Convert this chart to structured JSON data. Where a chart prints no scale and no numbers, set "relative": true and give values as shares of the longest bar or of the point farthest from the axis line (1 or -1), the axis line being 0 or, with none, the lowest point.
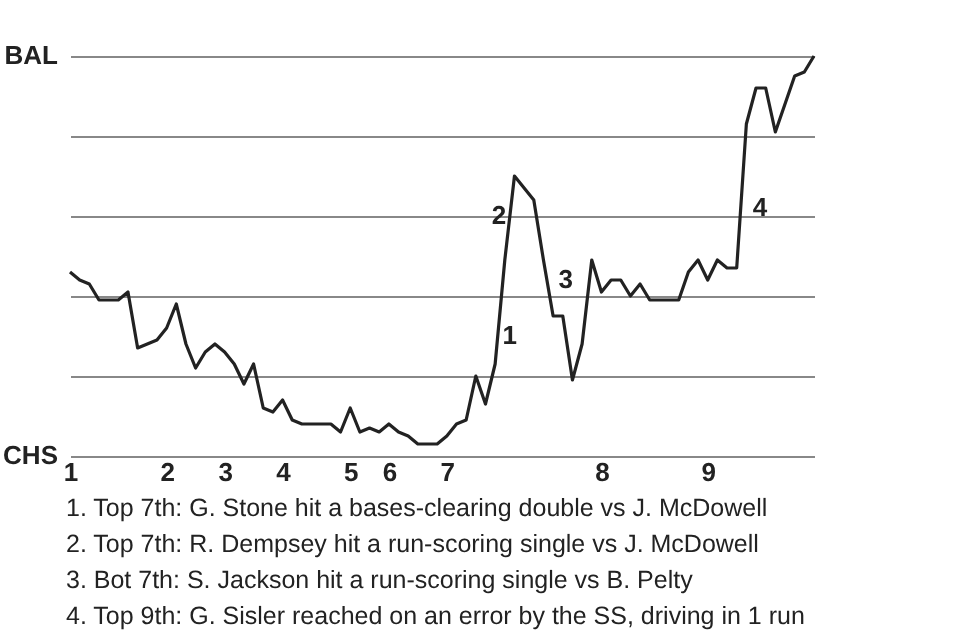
{
  "chart_data": {
    "type": "line",
    "relative": true,
    "categories": [
      "1",
      null,
      null,
      null,
      null,
      null,
      null,
      null,
      null,
      null,
      "2",
      null,
      null,
      null,
      null,
      null,
      "3",
      null,
      null,
      null,
      null,
      null,
      "4",
      null,
      null,
      null,
      null,
      null,
      null,
      "5",
      null,
      null,
      null,
      "6",
      null,
      null,
      null,
      null,
      null,
      "7",
      null,
      null,
      null,
      null,
      null,
      null,
      null,
      null,
      null,
      null,
      null,
      null,
      null,
      null,
      null,
      "8",
      null,
      null,
      null,
      null,
      null,
      null,
      null,
      null,
      null,
      null,
      "9",
      null,
      null,
      null,
      null,
      null,
      null,
      null,
      null,
      null,
      null,
      null
    ],
    "series": [
      {
        "color": "#222222",
        "values": [
          0.46,
          0.44,
          0.43,
          0.39,
          0.39,
          0.39,
          0.41,
          0.27,
          0.28,
          0.29,
          0.32,
          0.38,
          0.28,
          0.22,
          0.26,
          0.28,
          0.26,
          0.23,
          0.18,
          0.23,
          0.12,
          0.11,
          0.14,
          0.09,
          0.08,
          0.08,
          0.08,
          0.08,
          0.06,
          0.12,
          0.06,
          0.07,
          0.06,
          0.08,
          0.06,
          0.05,
          0.03,
          0.03,
          0.03,
          0.05,
          0.08,
          0.09,
          0.2,
          0.13,
          0.23,
          0.49,
          0.7,
          0.67,
          0.64,
          0.49,
          0.35,
          0.35,
          0.19,
          0.28,
          0.49,
          0.41,
          0.44,
          0.44,
          0.4,
          0.43,
          0.39,
          0.39,
          0.39,
          0.39,
          0.46,
          0.49,
          0.44,
          0.49,
          0.47,
          0.47,
          0.83,
          0.92,
          0.92,
          0.81,
          0.88,
          0.95,
          0.96,
          1.0
        ]
      }
    ],
    "grid": "y",
    "marker": "none",
    "line_style": "solid",
    "annotations": [
      "BAL",
      "CHS",
      "1",
      "2",
      "3",
      "4",
      "1. Top 7th: G. Stone hit a bases-clearing double vs J. McDowell",
      "2. Top 7th: R. Dempsey hit a run-scoring single vs J. McDowell",
      "3. Bot 7th: S. Jackson hit a run-scoring single vs B. Pelty",
      "4. Top 9th: G. Sisler reached on an error by the SS, driving in 1 run"
    ]
  }
}
